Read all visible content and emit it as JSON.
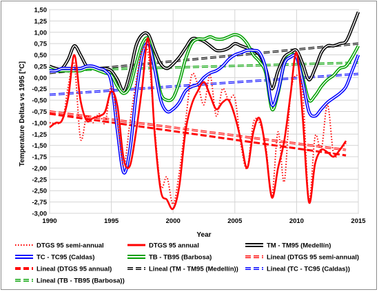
{
  "chart_data": {
    "type": "line",
    "title": "",
    "xlabel": "Year",
    "ylabel": "Temperature Deltas vs 1995 [°C]",
    "xlim": [
      1990,
      2015
    ],
    "ylim": [
      -3.0,
      1.5
    ],
    "x_ticks": [
      "1990",
      "1995",
      "2000",
      "2005",
      "2010",
      "2015"
    ],
    "y_ticks": [
      "1,50",
      "1,25",
      "1,00",
      "0,75",
      "0,50",
      "0,25",
      "0,00",
      "-0,25",
      "-0,50",
      "-0,75",
      "-1,00",
      "-1,25",
      "-1,50",
      "-1,75",
      "-2,00",
      "-2,25",
      "-2,50",
      "-2,75",
      "-3,00"
    ],
    "grid": true,
    "legend_position": "bottom",
    "series": [
      {
        "name": "DTGS 95 semi-annual",
        "color": "#ff0000",
        "style": "dotted",
        "x": [
          1990,
          1991,
          1991.5,
          1992,
          1992.5,
          1993,
          1993.5,
          1994,
          1994.5,
          1995,
          1995.5,
          1996,
          1996.5,
          1997,
          1997.5,
          1998,
          1998.5,
          1999,
          1999.5,
          2000,
          2000.5,
          2001,
          2001.5,
          2002,
          2002.5,
          2003,
          2003.5,
          2004,
          2004.5,
          2005,
          2005.5,
          2006,
          2006.5,
          2007,
          2007.5,
          2008,
          2008.5,
          2009,
          2009.5,
          2010,
          2010.5,
          2011,
          2011.5,
          2012,
          2012.5,
          2013,
          2013.5,
          2014
        ],
        "y": [
          -1.0,
          -0.95,
          -0.2,
          0.3,
          -1.35,
          -0.85,
          -1.0,
          -0.8,
          -1.0,
          -0.2,
          -1.0,
          -1.95,
          -1.0,
          -0.1,
          0.6,
          0.5,
          -1.1,
          -2.4,
          -2.2,
          -2.8,
          -2.1,
          -1.0,
          0.05,
          -0.15,
          -0.6,
          0.05,
          -0.85,
          -0.25,
          -0.5,
          -0.45,
          -1.5,
          -2.0,
          -1.0,
          -1.0,
          -1.5,
          -2.6,
          -1.2,
          -2.3,
          -0.4,
          0.05,
          -0.35,
          -2.7,
          -1.3,
          -1.6,
          -0.6,
          -1.7,
          -1.6,
          -1.45
        ]
      },
      {
        "name": "DTGS 95 annual",
        "color": "#ff0000",
        "style": "solid",
        "x": [
          1990,
          1990.5,
          1991,
          1991.5,
          1992,
          1992.5,
          1993,
          1993.5,
          1994,
          1994.5,
          1995,
          1995.5,
          1996,
          1996.5,
          1997,
          1997.5,
          1998,
          1998.5,
          1999,
          1999.5,
          2000,
          2000.5,
          2001,
          2001.5,
          2002,
          2002.5,
          2003,
          2003.5,
          2004,
          2004.5,
          2005,
          2005.5,
          2006,
          2006.5,
          2007,
          2007.5,
          2008,
          2008.5,
          2009,
          2009.5,
          2010,
          2010.5,
          2011,
          2011.5,
          2012,
          2012.5,
          2013,
          2013.5,
          2014
        ],
        "y": [
          -1.1,
          -1.0,
          -0.95,
          -0.45,
          0.5,
          -0.5,
          -0.95,
          -0.9,
          -0.85,
          -0.75,
          -0.3,
          -0.65,
          -1.8,
          -1.95,
          -1.2,
          -0.2,
          0.85,
          -1.2,
          -2.5,
          -2.7,
          -2.9,
          -2.4,
          -1.2,
          -0.6,
          -0.3,
          -0.1,
          -0.4,
          -0.7,
          -0.55,
          -0.5,
          -0.85,
          -1.4,
          -2.0,
          -1.2,
          -0.9,
          -1.6,
          -2.65,
          -2.0,
          -1.4,
          -0.4,
          0.55,
          -0.9,
          -2.75,
          -1.9,
          -1.6,
          -1.65,
          -1.75,
          -1.6,
          -1.4
        ]
      },
      {
        "name": "TM - TM95 (Medellín)",
        "color": "#000000",
        "style": "double",
        "x": [
          1990,
          1990.5,
          1991,
          1991.5,
          1992,
          1992.5,
          1993,
          1993.5,
          1994,
          1994.5,
          1995,
          1995.5,
          1996,
          1996.5,
          1997,
          1997.5,
          1998,
          1998.5,
          1999,
          1999.5,
          2000,
          2000.5,
          2001,
          2001.5,
          2002,
          2002.5,
          2003,
          2003.5,
          2004,
          2004.5,
          2005,
          2005.5,
          2006,
          2006.5,
          2007,
          2007.5,
          2008,
          2008.5,
          2009,
          2009.5,
          2010,
          2010.5,
          2011,
          2011.5,
          2012,
          2012.5,
          2013,
          2013.5,
          2014,
          2014.5,
          2015
        ],
        "y": [
          0.25,
          0.2,
          0.2,
          0.4,
          0.7,
          0.5,
          0.25,
          0.2,
          0.2,
          0.2,
          0.15,
          -0.05,
          -0.3,
          0.1,
          0.7,
          0.95,
          0.95,
          0.6,
          0.3,
          0.2,
          0.3,
          0.45,
          0.65,
          0.85,
          0.85,
          0.8,
          0.7,
          0.6,
          0.6,
          0.65,
          0.75,
          0.7,
          0.65,
          0.6,
          0.5,
          0.2,
          -0.25,
          0.15,
          0.45,
          0.55,
          0.6,
          0.3,
          -0.05,
          0.2,
          0.55,
          0.7,
          0.7,
          0.75,
          0.8,
          1.1,
          1.45
        ]
      },
      {
        "name": "TC - TC95 (Caldas)",
        "color": "#0000ff",
        "style": "double",
        "x": [
          1990,
          1990.5,
          1991,
          1991.5,
          1992,
          1992.5,
          1993,
          1993.5,
          1994,
          1994.5,
          1995,
          1995.5,
          1996,
          1996.5,
          1997,
          1997.5,
          1998,
          1998.5,
          1999,
          1999.5,
          2000,
          2000.5,
          2001,
          2001.5,
          2002,
          2002.5,
          2003,
          2003.5,
          2004,
          2004.5,
          2005,
          2005.5,
          2006,
          2006.5,
          2007,
          2007.5,
          2008,
          2008.5,
          2009,
          2009.5,
          2010,
          2010.5,
          2011,
          2011.5,
          2012,
          2012.5,
          2013,
          2013.5,
          2014,
          2014.5,
          2015
        ],
        "y": [
          0.15,
          0.15,
          0.2,
          0.2,
          0.2,
          0.2,
          0.25,
          0.25,
          0.2,
          0.15,
          -0.1,
          -1.2,
          -2.1,
          -1.6,
          -0.4,
          0.5,
          0.75,
          0.2,
          -0.5,
          -0.75,
          -0.7,
          -0.55,
          -0.3,
          -0.2,
          -0.15,
          0.0,
          0.1,
          0.15,
          0.25,
          0.4,
          0.5,
          0.55,
          0.6,
          0.6,
          0.55,
          0.2,
          -0.6,
          -0.3,
          0.3,
          0.45,
          0.45,
          -0.1,
          -0.75,
          -0.85,
          -0.7,
          -0.55,
          -0.45,
          -0.35,
          -0.2,
          0.15,
          0.5
        ]
      },
      {
        "name": "TB - TB95 (Barbosa)",
        "color": "#00a000",
        "style": "double",
        "x": [
          1990,
          1990.5,
          1991,
          1991.5,
          1992,
          1992.5,
          1993,
          1993.5,
          1994,
          1994.5,
          1995,
          1995.5,
          1996,
          1996.5,
          1997,
          1997.5,
          1998,
          1998.5,
          1999,
          1999.5,
          2000,
          2000.5,
          2001,
          2001.5,
          2002,
          2002.5,
          2003,
          2003.5,
          2004,
          2004.5,
          2005,
          2005.5,
          2006,
          2006.5,
          2007,
          2007.5,
          2008,
          2008.5,
          2009,
          2009.5,
          2010,
          2010.5,
          2011,
          2011.5,
          2012,
          2012.5,
          2013,
          2013.5,
          2014,
          2014.5,
          2015
        ],
        "y": [
          0.2,
          0.15,
          0.15,
          0.15,
          0.15,
          0.15,
          0.2,
          0.2,
          0.15,
          0.1,
          0.05,
          -0.2,
          -0.35,
          -0.2,
          0.3,
          0.75,
          0.85,
          0.3,
          -0.35,
          -0.5,
          -0.45,
          -0.1,
          0.4,
          0.75,
          0.85,
          0.85,
          0.9,
          0.85,
          0.85,
          0.9,
          0.95,
          0.9,
          0.75,
          0.5,
          0.35,
          0.1,
          -0.7,
          -0.35,
          0.3,
          0.5,
          0.45,
          0.0,
          -0.5,
          -0.4,
          -0.2,
          -0.05,
          0.05,
          0.2,
          0.25,
          0.45,
          0.7
        ]
      },
      {
        "name": "Lineal (DTGS 95 semi-annual)",
        "color": "#ff0000",
        "style": "dash-double",
        "x": [
          1990,
          2014
        ],
        "y": [
          -0.75,
          -1.6
        ]
      },
      {
        "name": "Lineal (DTGS 95 annual)",
        "color": "#ff0000",
        "style": "dash",
        "x": [
          1990,
          2014
        ],
        "y": [
          -0.8,
          -1.72
        ]
      },
      {
        "name": "Lineal (TM - TM95 (Medellín))",
        "color": "#000000",
        "style": "dash-double",
        "x": [
          1990,
          2015
        ],
        "y": [
          0.1,
          0.75
        ]
      },
      {
        "name": "Lineal (TC - TC95 (Caldas))",
        "color": "#0000ff",
        "style": "dash-double",
        "x": [
          1990,
          2015
        ],
        "y": [
          -0.38,
          0.08
        ]
      },
      {
        "name": "Lineal (TB - TB95 (Barbosa))",
        "color": "#00a000",
        "style": "dash-double",
        "x": [
          1990,
          2015
        ],
        "y": [
          0.15,
          0.33
        ]
      }
    ],
    "legend": [
      {
        "label": "DTGS 95 semi-annual",
        "color": "#ff0000",
        "style": "dotted"
      },
      {
        "label": "DTGS 95 annual",
        "color": "#ff0000",
        "style": "solid"
      },
      {
        "label": "TM - TM95 (Medellín)",
        "color": "#000000",
        "style": "double"
      },
      {
        "label": "TC - TC95 (Caldas)",
        "color": "#0000ff",
        "style": "double"
      },
      {
        "label": "TB - TB95 (Barbosa)",
        "color": "#00a000",
        "style": "double"
      },
      {
        "label": "Lineal (DTGS 95 semi-annual)",
        "color": "#ff0000",
        "style": "dash-double"
      },
      {
        "label": "Lineal (DTGS 95 annual)",
        "color": "#ff0000",
        "style": "dash"
      },
      {
        "label": "Lineal (TM - TM95 (Medellín))",
        "color": "#000000",
        "style": "dash-double"
      },
      {
        "label": "Lineal (TC - TC95 (Caldas))",
        "color": "#0000ff",
        "style": "dash-double"
      },
      {
        "label": "Lineal (TB - TB95 (Barbosa))",
        "color": "#00a000",
        "style": "dash-double"
      }
    ]
  }
}
